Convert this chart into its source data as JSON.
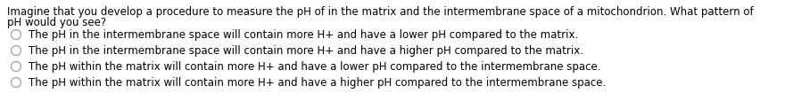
{
  "question_line1": "Imagine that you develop a procedure to measure the pH of in the matrix and the intermembrane space of a mitochondrion. What pattern of",
  "question_line2": "pH would you see?",
  "options": [
    "The pH in the intermembrane space will contain more H+ and have a lower pH compared to the matrix.",
    "The pH in the intermembrane space will contain more H+ and have a higher pH compared to the matrix.",
    "The pH within the matrix will contain more H+ and have a lower pH compared to the intermembrane space.",
    "The pH within the matrix will contain more H+ and have a higher pH compared to the intermembrane space."
  ],
  "background_color": "#ffffff",
  "text_color": "#000000",
  "circle_color": "#a0a0a0",
  "font_size": 8.5,
  "fig_width": 8.8,
  "fig_height": 1.23,
  "dpi": 100
}
